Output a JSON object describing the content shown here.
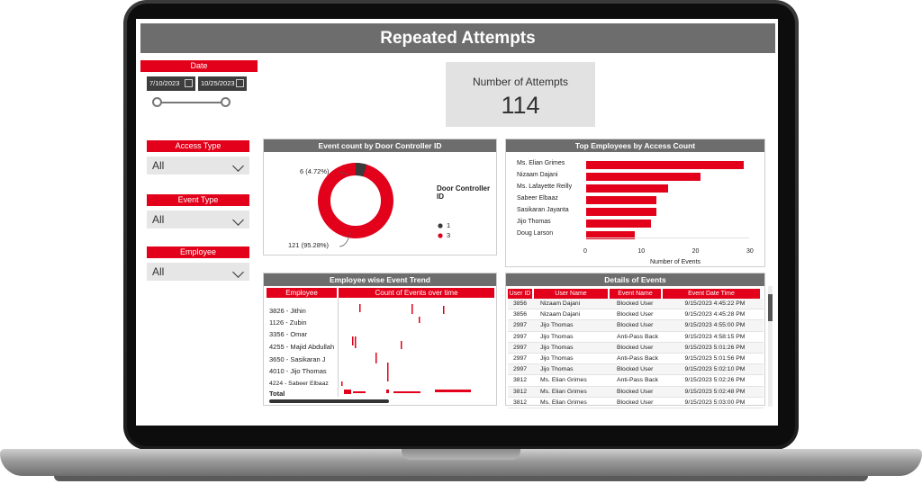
{
  "app": {
    "title": "Repeated Attempts"
  },
  "date_filter": {
    "label": "Date",
    "start": "7/10/2023",
    "end": "10/25/2023"
  },
  "kpi": {
    "label": "Number of Attempts",
    "value": "114"
  },
  "filters": [
    {
      "label": "Access Type",
      "value": "All"
    },
    {
      "label": "Event Type",
      "value": "All"
    },
    {
      "label": "Employee",
      "value": "All"
    }
  ],
  "donut": {
    "title": "Event count by Door Controller ID",
    "legend_title": "Door Controller ID",
    "legend_title_line1": "Door Controller",
    "legend_title_line2": "ID",
    "label_small": "6 (4.72%)",
    "label_large": "121 (95.28%)",
    "colors": {
      "small": "#3a3a3a",
      "large": "#e2001a"
    }
  },
  "top_employees": {
    "title": "Top Employees by Access Count",
    "xlabel": "Number of Events",
    "ticks": [
      "0",
      "10",
      "20",
      "30"
    ]
  },
  "trend": {
    "title": "Employee wise Event Trend",
    "col1": "Employee",
    "col2": "Count of Events over time",
    "rows": [
      "3826 - Jithin",
      "1126 - Zubin",
      "3356 - Omar",
      "4255 - Majid Abdullah",
      "3650 - Sasikaran J",
      "4010 - Jijo Thomas",
      "4224 - Sabeer Elbaaz"
    ],
    "total": "Total"
  },
  "details": {
    "title": "Details of Events",
    "headers": [
      "User ID",
      "User Name",
      "Event Name",
      "Event Date Time"
    ],
    "rows": [
      [
        "3856",
        "Nizaam Dajani",
        "Blocked User",
        "9/15/2023 4:45:22 PM"
      ],
      [
        "3856",
        "Nizaam Dajani",
        "Blocked User",
        "9/15/2023 4:45:28 PM"
      ],
      [
        "2997",
        "Jijo Thomas",
        "Blocked User",
        "9/15/2023 4:55:00 PM"
      ],
      [
        "2997",
        "Jijo Thomas",
        "Anti-Pass Back",
        "9/15/2023 4:58:15 PM"
      ],
      [
        "2997",
        "Jijo Thomas",
        "Blocked User",
        "9/15/2023 5:01:26 PM"
      ],
      [
        "2997",
        "Jijo Thomas",
        "Anti-Pass Back",
        "9/15/2023 5:01:56 PM"
      ],
      [
        "2997",
        "Jijo Thomas",
        "Blocked User",
        "9/15/2023 5:02:10 PM"
      ],
      [
        "3812",
        "Ms. Elian Grimes",
        "Anti-Pass Back",
        "9/15/2023 5:02:26 PM"
      ],
      [
        "3812",
        "Ms. Elian Grimes",
        "Blocked User",
        "9/15/2023 5:02:48 PM"
      ],
      [
        "3812",
        "Ms. Elian Grimes",
        "Blocked User",
        "9/15/2023 5:03:00 PM"
      ]
    ]
  },
  "chart_data": [
    {
      "type": "pie",
      "title": "Event count by Door Controller ID",
      "categories": [
        "1",
        "3"
      ],
      "values": [
        6,
        121
      ],
      "percentages": [
        4.72,
        95.28
      ],
      "legend_title": "Door Controller ID",
      "legend_placement": "right",
      "colors": [
        "#3a3a3a",
        "#e2001a"
      ]
    },
    {
      "type": "bar",
      "orientation": "horizontal",
      "title": "Top Employees by Access Count",
      "categories": [
        "Ms. Elian Grimes",
        "Nizaam Dajani",
        "Ms. Lafayette Reilly",
        "Sabeer Elbaaz",
        "Sasikaran Jayanta",
        "Jijo Thomas",
        "Doug Larson"
      ],
      "values": [
        29,
        21,
        15,
        13,
        13,
        12,
        9
      ],
      "xlabel": "Number of Events",
      "xlim": [
        0,
        30
      ],
      "color": "#e2001a"
    }
  ]
}
